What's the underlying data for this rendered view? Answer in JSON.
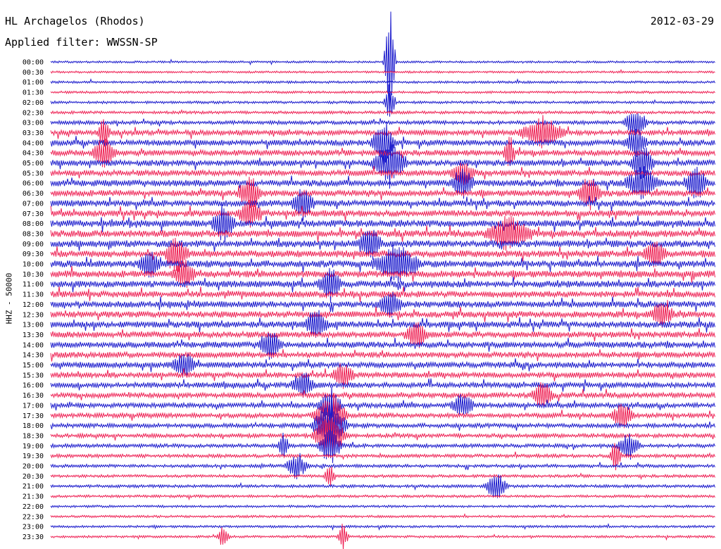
{
  "header": {
    "station": "HL Archagelos (Rhodos)",
    "filter": "Applied filter: WWSSN-SP",
    "date": "2012-03-29",
    "channel": "HHZ - 50000"
  },
  "colors": {
    "trace_a": "#1a1acc",
    "trace_b": "#ee2255",
    "text": "#000000"
  },
  "chart_data": {
    "type": "line",
    "title": "HL Archagelos (Rhodos)",
    "subtitle": "Applied filter: WWSSN-SP",
    "date": "2012-03-29",
    "ylabel": "HHZ - 50000",
    "xlabel": "",
    "grid": false,
    "rows": [
      {
        "label": "00:00",
        "activity": 0.15,
        "events": [
          {
            "pos": 0.51,
            "amp": 6,
            "dur": 0.01
          }
        ]
      },
      {
        "label": "00:30",
        "activity": 0.15,
        "events": []
      },
      {
        "label": "01:00",
        "activity": 0.2,
        "events": []
      },
      {
        "label": "01:30",
        "activity": 0.2,
        "events": []
      },
      {
        "label": "02:00",
        "activity": 0.25,
        "events": [
          {
            "pos": 0.51,
            "amp": 2,
            "dur": 0.01
          }
        ]
      },
      {
        "label": "02:30",
        "activity": 0.3,
        "events": []
      },
      {
        "label": "03:00",
        "activity": 0.45,
        "events": [
          {
            "pos": 0.88,
            "amp": 1.5,
            "dur": 0.02
          }
        ]
      },
      {
        "label": "03:30",
        "activity": 0.7,
        "events": [
          {
            "pos": 0.08,
            "amp": 1.8,
            "dur": 0.01
          },
          {
            "pos": 0.74,
            "amp": 1.6,
            "dur": 0.04
          }
        ]
      },
      {
        "label": "04:00",
        "activity": 0.8,
        "events": [
          {
            "pos": 0.5,
            "amp": 2.2,
            "dur": 0.02
          },
          {
            "pos": 0.88,
            "amp": 1.4,
            "dur": 0.02
          }
        ]
      },
      {
        "label": "04:30",
        "activity": 0.8,
        "events": [
          {
            "pos": 0.08,
            "amp": 1.6,
            "dur": 0.02
          },
          {
            "pos": 0.69,
            "amp": 1.8,
            "dur": 0.01
          }
        ]
      },
      {
        "label": "05:00",
        "activity": 0.85,
        "events": [
          {
            "pos": 0.51,
            "amp": 2.0,
            "dur": 0.03
          },
          {
            "pos": 0.89,
            "amp": 1.8,
            "dur": 0.02
          }
        ]
      },
      {
        "label": "05:30",
        "activity": 0.8,
        "events": [
          {
            "pos": 0.62,
            "amp": 1.4,
            "dur": 0.02
          }
        ]
      },
      {
        "label": "06:00",
        "activity": 0.9,
        "events": [
          {
            "pos": 0.62,
            "amp": 1.6,
            "dur": 0.02
          },
          {
            "pos": 0.89,
            "amp": 1.6,
            "dur": 0.03
          },
          {
            "pos": 0.97,
            "amp": 1.8,
            "dur": 0.02
          }
        ]
      },
      {
        "label": "06:30",
        "activity": 0.9,
        "events": [
          {
            "pos": 0.3,
            "amp": 1.8,
            "dur": 0.02
          },
          {
            "pos": 0.81,
            "amp": 1.6,
            "dur": 0.02
          }
        ]
      },
      {
        "label": "07:00",
        "activity": 0.9,
        "events": [
          {
            "pos": 0.38,
            "amp": 1.6,
            "dur": 0.02
          }
        ]
      },
      {
        "label": "07:30",
        "activity": 0.9,
        "events": [
          {
            "pos": 0.3,
            "amp": 1.5,
            "dur": 0.02
          }
        ]
      },
      {
        "label": "08:00",
        "activity": 1.0,
        "events": [
          {
            "pos": 0.26,
            "amp": 2.0,
            "dur": 0.02
          }
        ]
      },
      {
        "label": "08:30",
        "activity": 1.0,
        "events": [
          {
            "pos": 0.69,
            "amp": 1.8,
            "dur": 0.04
          }
        ]
      },
      {
        "label": "09:00",
        "activity": 1.0,
        "events": [
          {
            "pos": 0.48,
            "amp": 1.8,
            "dur": 0.02
          }
        ]
      },
      {
        "label": "09:30",
        "activity": 1.0,
        "events": [
          {
            "pos": 0.19,
            "amp": 1.8,
            "dur": 0.02
          },
          {
            "pos": 0.91,
            "amp": 1.4,
            "dur": 0.02
          }
        ]
      },
      {
        "label": "10:00",
        "activity": 1.0,
        "events": [
          {
            "pos": 0.52,
            "amp": 2.0,
            "dur": 0.04
          },
          {
            "pos": 0.15,
            "amp": 1.6,
            "dur": 0.02
          }
        ]
      },
      {
        "label": "10:30",
        "activity": 1.0,
        "events": [
          {
            "pos": 0.2,
            "amp": 1.6,
            "dur": 0.02
          }
        ]
      },
      {
        "label": "11:00",
        "activity": 0.95,
        "events": [
          {
            "pos": 0.42,
            "amp": 1.8,
            "dur": 0.02
          }
        ]
      },
      {
        "label": "11:30",
        "activity": 0.9,
        "events": []
      },
      {
        "label": "12:00",
        "activity": 0.9,
        "events": [
          {
            "pos": 0.51,
            "amp": 1.4,
            "dur": 0.02
          }
        ]
      },
      {
        "label": "12:30",
        "activity": 0.9,
        "events": [
          {
            "pos": 0.92,
            "amp": 1.3,
            "dur": 0.02
          }
        ]
      },
      {
        "label": "13:00",
        "activity": 0.9,
        "events": [
          {
            "pos": 0.4,
            "amp": 1.6,
            "dur": 0.02
          }
        ]
      },
      {
        "label": "13:30",
        "activity": 0.85,
        "events": [
          {
            "pos": 0.55,
            "amp": 1.4,
            "dur": 0.02
          }
        ]
      },
      {
        "label": "14:00",
        "activity": 0.85,
        "events": [
          {
            "pos": 0.33,
            "amp": 1.6,
            "dur": 0.02
          }
        ]
      },
      {
        "label": "14:30",
        "activity": 0.8,
        "events": []
      },
      {
        "label": "15:00",
        "activity": 0.8,
        "events": [
          {
            "pos": 0.2,
            "amp": 1.3,
            "dur": 0.02
          }
        ]
      },
      {
        "label": "15:30",
        "activity": 0.75,
        "events": [
          {
            "pos": 0.44,
            "amp": 1.3,
            "dur": 0.02
          }
        ]
      },
      {
        "label": "16:00",
        "activity": 0.75,
        "events": [
          {
            "pos": 0.38,
            "amp": 1.5,
            "dur": 0.02
          }
        ]
      },
      {
        "label": "16:30",
        "activity": 0.7,
        "events": [
          {
            "pos": 0.74,
            "amp": 1.4,
            "dur": 0.02
          }
        ]
      },
      {
        "label": "17:00",
        "activity": 0.65,
        "events": [
          {
            "pos": 0.42,
            "amp": 2.0,
            "dur": 0.02
          },
          {
            "pos": 0.62,
            "amp": 1.2,
            "dur": 0.02
          }
        ]
      },
      {
        "label": "17:30",
        "activity": 0.6,
        "events": [
          {
            "pos": 0.42,
            "amp": 2.4,
            "dur": 0.03
          },
          {
            "pos": 0.86,
            "amp": 1.3,
            "dur": 0.02
          }
        ]
      },
      {
        "label": "18:00",
        "activity": 0.55,
        "events": [
          {
            "pos": 0.42,
            "amp": 2.6,
            "dur": 0.03
          }
        ]
      },
      {
        "label": "18:30",
        "activity": 0.5,
        "events": [
          {
            "pos": 0.42,
            "amp": 2.2,
            "dur": 0.03
          }
        ]
      },
      {
        "label": "19:00",
        "activity": 0.45,
        "events": [
          {
            "pos": 0.42,
            "amp": 2.0,
            "dur": 0.02
          },
          {
            "pos": 0.35,
            "amp": 1.2,
            "dur": 0.01
          },
          {
            "pos": 0.87,
            "amp": 1.4,
            "dur": 0.02
          }
        ]
      },
      {
        "label": "19:30",
        "activity": 0.4,
        "events": [
          {
            "pos": 0.85,
            "amp": 1.6,
            "dur": 0.01
          }
        ]
      },
      {
        "label": "20:00",
        "activity": 0.35,
        "events": [
          {
            "pos": 0.37,
            "amp": 1.3,
            "dur": 0.02
          }
        ]
      },
      {
        "label": "20:30",
        "activity": 0.3,
        "events": [
          {
            "pos": 0.42,
            "amp": 1.2,
            "dur": 0.01
          }
        ]
      },
      {
        "label": "21:00",
        "activity": 0.3,
        "events": [
          {
            "pos": 0.67,
            "amp": 1.5,
            "dur": 0.02
          }
        ]
      },
      {
        "label": "21:30",
        "activity": 0.25,
        "events": []
      },
      {
        "label": "22:00",
        "activity": 0.2,
        "events": []
      },
      {
        "label": "22:30",
        "activity": 0.2,
        "events": []
      },
      {
        "label": "23:00",
        "activity": 0.2,
        "events": []
      },
      {
        "label": "23:30",
        "activity": 0.2,
        "events": [
          {
            "pos": 0.26,
            "amp": 1.2,
            "dur": 0.01
          },
          {
            "pos": 0.44,
            "amp": 1.4,
            "dur": 0.01
          }
        ]
      }
    ]
  }
}
